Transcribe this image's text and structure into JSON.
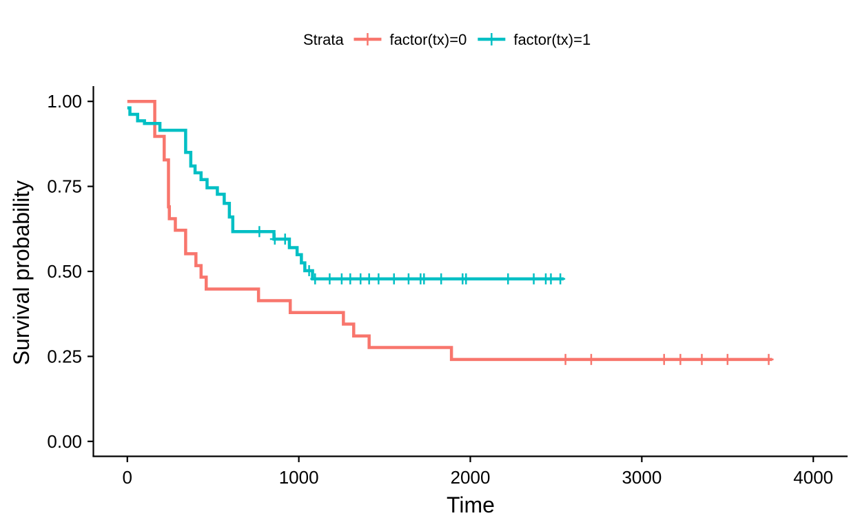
{
  "chart_data": {
    "type": "line",
    "subtype": "kaplan-meier step",
    "title": "",
    "xlabel": "Time",
    "ylabel": "Survival probability",
    "xlim": [
      -200,
      4200
    ],
    "ylim": [
      -0.045,
      1.045
    ],
    "x_ticks": [
      0,
      1000,
      2000,
      3000,
      4000
    ],
    "y_ticks": [
      0.0,
      0.25,
      0.5,
      0.75,
      1.0
    ],
    "x_tick_labels": [
      "0",
      "1000",
      "2000",
      "3000",
      "4000"
    ],
    "y_tick_labels": [
      "0.00",
      "0.25",
      "0.50",
      "0.75",
      "1.00"
    ],
    "grid": false,
    "legend": {
      "position": "top",
      "title": "Strata",
      "entries": [
        "factor(tx)=0",
        "factor(tx)=1"
      ]
    },
    "series": [
      {
        "name": "factor(tx)=0",
        "color": "#F8766D",
        "steps": [
          [
            0,
            1.0
          ],
          [
            160,
            0.897
          ],
          [
            215,
            0.828
          ],
          [
            240,
            0.69
          ],
          [
            245,
            0.655
          ],
          [
            280,
            0.621
          ],
          [
            340,
            0.552
          ],
          [
            400,
            0.517
          ],
          [
            430,
            0.483
          ],
          [
            460,
            0.448
          ],
          [
            765,
            0.414
          ],
          [
            950,
            0.379
          ],
          [
            1260,
            0.345
          ],
          [
            1320,
            0.31
          ],
          [
            1410,
            0.276
          ],
          [
            1890,
            0.241
          ]
        ],
        "end_time": 3760,
        "censor_times": [
          2555,
          2705,
          3130,
          3225,
          3350,
          3500,
          3740
        ]
      },
      {
        "name": "factor(tx)=1",
        "color": "#00BFC4",
        "steps": [
          [
            0,
            0.981
          ],
          [
            15,
            0.962
          ],
          [
            60,
            0.943
          ],
          [
            100,
            0.935
          ],
          [
            190,
            0.915
          ],
          [
            340,
            0.85
          ],
          [
            370,
            0.81
          ],
          [
            395,
            0.79
          ],
          [
            430,
            0.77
          ],
          [
            465,
            0.746
          ],
          [
            525,
            0.727
          ],
          [
            565,
            0.7
          ],
          [
            595,
            0.66
          ],
          [
            615,
            0.617
          ],
          [
            855,
            0.595
          ],
          [
            945,
            0.57
          ],
          [
            990,
            0.549
          ],
          [
            1015,
            0.525
          ],
          [
            1035,
            0.502
          ],
          [
            1080,
            0.478
          ]
        ],
        "end_time": 2545,
        "censor_times": [
          770,
          860,
          920,
          1060,
          1095,
          1180,
          1250,
          1300,
          1360,
          1410,
          1465,
          1555,
          1640,
          1710,
          1730,
          1830,
          1955,
          1975,
          2220,
          2370,
          2440,
          2470,
          2525
        ]
      }
    ]
  }
}
